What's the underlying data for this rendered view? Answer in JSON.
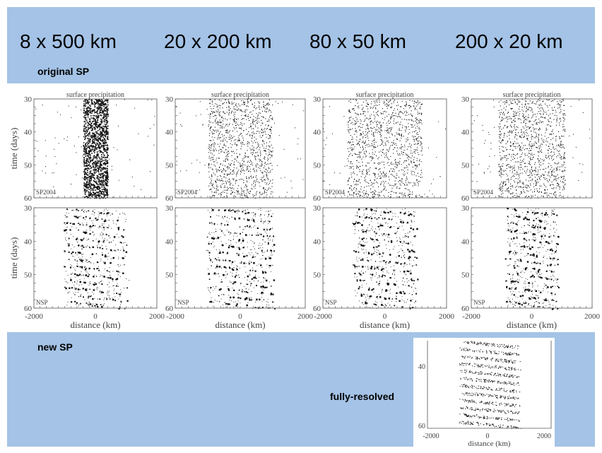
{
  "header": {
    "columns": [
      "8 x 500 km",
      "20 x 200 km",
      "80 x 50 km",
      "200 x 20 km"
    ],
    "subtitle": "original SP"
  },
  "panels": {
    "title": "surface precipitation",
    "y_label": "time (days)",
    "x_label": "distance (km)",
    "yticks": [
      30,
      40,
      50,
      60
    ],
    "xticks": [
      "-2000",
      "0",
      "2000"
    ],
    "row_labels": [
      "SP2004",
      "NSP"
    ]
  },
  "footer": {
    "label": "new SP",
    "inset_label": "fully-resolved",
    "inset_yticks": [
      40,
      60
    ]
  }
}
